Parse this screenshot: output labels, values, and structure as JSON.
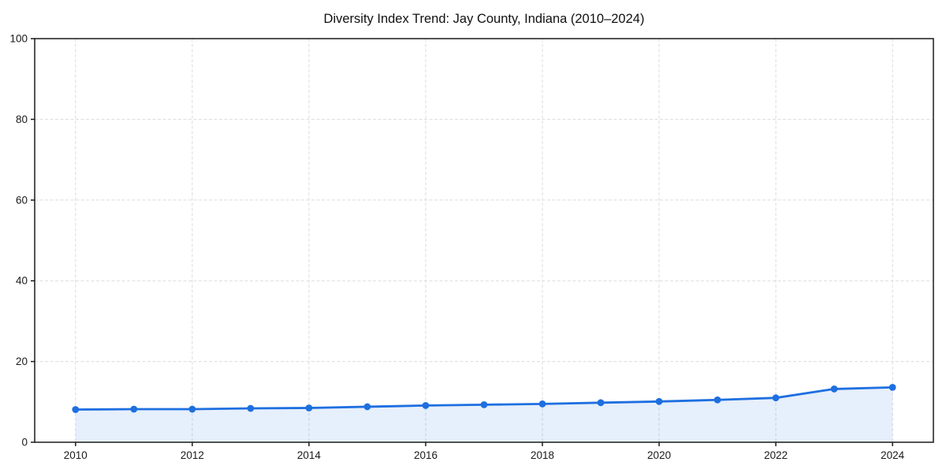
{
  "figure": {
    "background": "#ffffff"
  },
  "chart_data": {
    "type": "area",
    "title": "Diversity Index Trend: Jay County, Indiana (2010–2024)",
    "xlabel": "",
    "ylabel": "",
    "x": [
      2010,
      2011,
      2012,
      2013,
      2014,
      2015,
      2016,
      2017,
      2018,
      2019,
      2020,
      2021,
      2022,
      2023,
      2024
    ],
    "series": [
      {
        "name": "Diversity Index",
        "values": [
          8.1,
          8.2,
          8.2,
          8.4,
          8.5,
          8.8,
          9.1,
          9.3,
          9.5,
          9.8,
          10.1,
          10.5,
          11.0,
          13.2,
          13.6
        ]
      }
    ],
    "xlim": [
      2009.3,
      2024.7
    ],
    "ylim": [
      0,
      100
    ],
    "xticks": [
      2010,
      2012,
      2014,
      2016,
      2018,
      2020,
      2022,
      2024
    ],
    "yticks": [
      0,
      20,
      40,
      60,
      80,
      100
    ],
    "grid": true,
    "grid_style": "dashed",
    "legend": "none",
    "line_color": "#1e6fe0",
    "marker_color": "#1e6fe0",
    "fill_color": "#1e6fe0",
    "fill_opacity": 0.11,
    "grid_color": "#dcdcdc",
    "spine_color": "#1a1a1a",
    "tick_label_color": "#1a1a1a"
  }
}
